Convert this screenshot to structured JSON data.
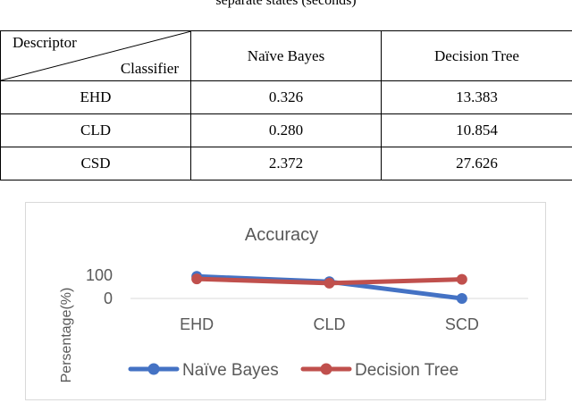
{
  "caption": "separate states (seconds)",
  "table": {
    "header": {
      "descriptor": "Descriptor",
      "classifier": "Classifier",
      "columns": [
        "Naïve Bayes",
        "Decision Tree"
      ]
    },
    "rows": [
      {
        "label": "EHD",
        "values": [
          "0.326",
          "13.383"
        ]
      },
      {
        "label": "CLD",
        "values": [
          "0.280",
          "10.854"
        ]
      },
      {
        "label": "CSD",
        "values": [
          "2.372",
          "27.626"
        ]
      }
    ]
  },
  "chart_data": {
    "type": "line",
    "title": "Accuracy",
    "xlabel": "",
    "ylabel": "Persentage(%)",
    "categories": [
      "EHD",
      "CLD",
      "SCD"
    ],
    "yticks": [
      "100",
      "0"
    ],
    "ylim": [
      0,
      100
    ],
    "grid": false,
    "legend": "bottom",
    "series": [
      {
        "name": "Naïve Bayes",
        "values": [
          95,
          72,
          0
        ],
        "color": "#4472c4"
      },
      {
        "name": "Decision Tree",
        "values": [
          84,
          66,
          82
        ],
        "color": "#c0504d"
      }
    ]
  }
}
